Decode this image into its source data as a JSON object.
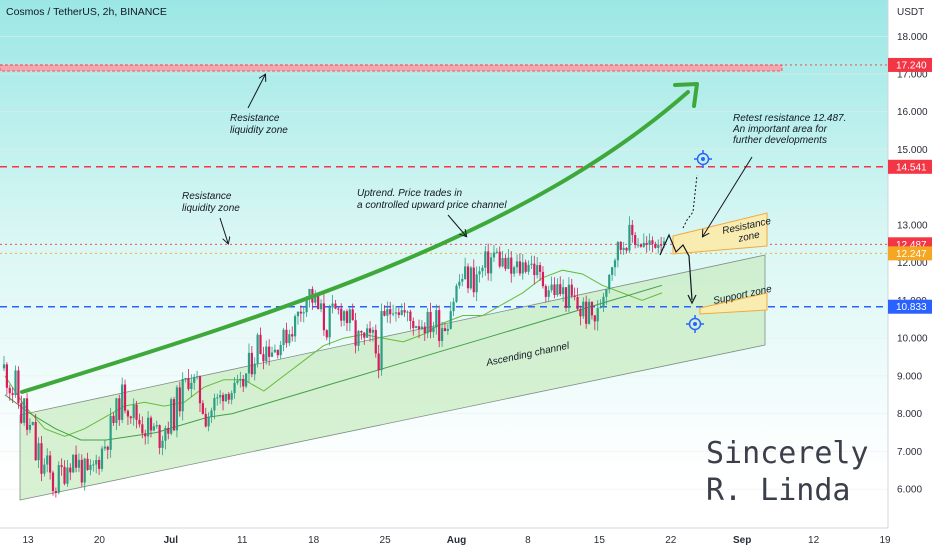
{
  "header": {
    "title": "Cosmos / TetherUS, 2h, BINANCE",
    "currency": "USDT"
  },
  "chart_data": {
    "type": "candlestick",
    "ylim": [
      5.2,
      19.0
    ],
    "y_ticks": [
      "18.000",
      "17.000",
      "16.000",
      "15.000",
      "13.000",
      "12.000",
      "11.000",
      "10.000",
      "9.000",
      "8.000",
      "7.000",
      "6.000"
    ],
    "x_ticks": [
      {
        "label": "13",
        "major": false
      },
      {
        "label": "20",
        "major": false
      },
      {
        "label": "Jul",
        "major": true
      },
      {
        "label": "11",
        "major": false
      },
      {
        "label": "18",
        "major": false
      },
      {
        "label": "25",
        "major": false
      },
      {
        "label": "Aug",
        "major": true
      },
      {
        "label": "8",
        "major": false
      },
      {
        "label": "15",
        "major": false
      },
      {
        "label": "22",
        "major": false
      },
      {
        "label": "Sep",
        "major": true
      },
      {
        "label": "12",
        "major": false
      },
      {
        "label": "19",
        "major": false
      }
    ],
    "price_levels": [
      {
        "label": "17.240",
        "value": 17.24,
        "color": "#f23645",
        "style": "dotted"
      },
      {
        "label": "14.541",
        "value": 14.541,
        "color": "#f23645",
        "style": "dashed"
      },
      {
        "label": "12.487",
        "value": 12.487,
        "color": "#f23645",
        "style": "dotted"
      },
      {
        "label": "12.247",
        "value": 12.247,
        "color": "#f5a623",
        "style": "dotted"
      },
      {
        "label": "10.833",
        "value": 10.833,
        "color": "#2962ff",
        "style": "dashed"
      }
    ],
    "price_path": [
      [
        9.0,
        9.4
      ],
      [
        7.5,
        8.9
      ],
      [
        6.0,
        7.5
      ],
      [
        5.8,
        6.4
      ],
      [
        6.6,
        7.2
      ],
      [
        6.0,
        6.5
      ],
      [
        7.0,
        7.5
      ],
      [
        8.2,
        8.7
      ],
      [
        7.6,
        8.0
      ],
      [
        7.0,
        7.8
      ],
      [
        7.6,
        8.4
      ],
      [
        8.9,
        9.2
      ],
      [
        7.6,
        8.4
      ],
      [
        8.5,
        8.6
      ],
      [
        8.5,
        8.8
      ],
      [
        9.5,
        10.2
      ],
      [
        9.6,
        9.8
      ],
      [
        10.1,
        10.4
      ],
      [
        11.1,
        11.4
      ],
      [
        10.0,
        10.7
      ],
      [
        10.6,
        11.0
      ],
      [
        9.4,
        10.2
      ],
      [
        9.0,
        10.3
      ],
      [
        10.8,
        11.2
      ],
      [
        10.3,
        10.6
      ],
      [
        10.2,
        10.6
      ],
      [
        10.0,
        10.9
      ],
      [
        11.4,
        11.8
      ],
      [
        11.2,
        12.0
      ],
      [
        12.1,
        12.4
      ],
      [
        11.4,
        12.0
      ],
      [
        11.9,
        12.2
      ],
      [
        11.2,
        11.6
      ],
      [
        11.0,
        11.4
      ],
      [
        10.4,
        11.2
      ],
      [
        10.4,
        10.6
      ],
      [
        12.0,
        12.4
      ],
      [
        12.6,
        12.9
      ],
      [
        12.3,
        12.5
      ],
      [
        12.6,
        12.8
      ]
    ],
    "series": [
      {
        "name": "",
        "kind": "ma-fast",
        "color": "#66bb3a",
        "values": [
          9.0,
          8.2,
          7.6,
          7.4,
          7.6,
          7.9,
          8.2,
          8.3,
          8.2,
          8.3,
          8.7,
          8.9,
          8.9,
          8.6,
          9.0,
          9.4,
          9.8,
          10.0,
          10.1,
          10.0,
          9.9,
          10.1,
          10.4,
          10.6,
          10.6,
          10.9,
          11.2,
          11.6,
          11.8,
          11.7,
          11.4,
          11.2,
          11.0,
          11.2
        ]
      },
      {
        "name": "",
        "kind": "ma-slow",
        "color": "#43a047",
        "values": [
          8.5,
          8.0,
          7.6,
          7.3,
          7.3,
          7.4,
          7.5,
          7.7,
          7.9,
          8.0,
          8.2,
          8.4,
          8.6,
          8.8,
          9.0,
          9.2,
          9.4,
          9.6,
          9.8,
          10.0,
          10.2,
          10.4,
          10.6,
          10.8,
          11.0,
          11.2,
          11.4
        ]
      }
    ],
    "annotations": [
      {
        "id": "res_liq_top",
        "lines": [
          "Resistance",
          "liquidity zone"
        ]
      },
      {
        "id": "res_liq_mid",
        "lines": [
          "Resistance",
          "liquidity zone"
        ]
      },
      {
        "id": "uptrend",
        "lines": [
          "Uptrend. Price trades in",
          "a controlled upward price channel"
        ]
      },
      {
        "id": "retest",
        "lines": [
          "Retest resistance 12.487.",
          "An important area for",
          "further developments"
        ]
      },
      {
        "id": "resistance_zone",
        "lines": [
          "Resistance",
          "zone"
        ]
      },
      {
        "id": "support_zone",
        "lines": [
          "Support zone"
        ]
      },
      {
        "id": "channel",
        "lines": [
          "Ascending channel"
        ]
      }
    ],
    "signature": [
      "Sincerely",
      "R. Linda"
    ]
  },
  "colors": {
    "bull": "#2b9e85",
    "bear": "#d81b5a",
    "background_top": "#9ae6e4",
    "background_bottom": "#ffffff",
    "channel_fill": "#c9ecc3",
    "trend_arrow": "#3fa83a",
    "zone_fill": "#f8ecb0",
    "zone_edge": "#f2a93b",
    "target_icon": "#2962ff"
  }
}
